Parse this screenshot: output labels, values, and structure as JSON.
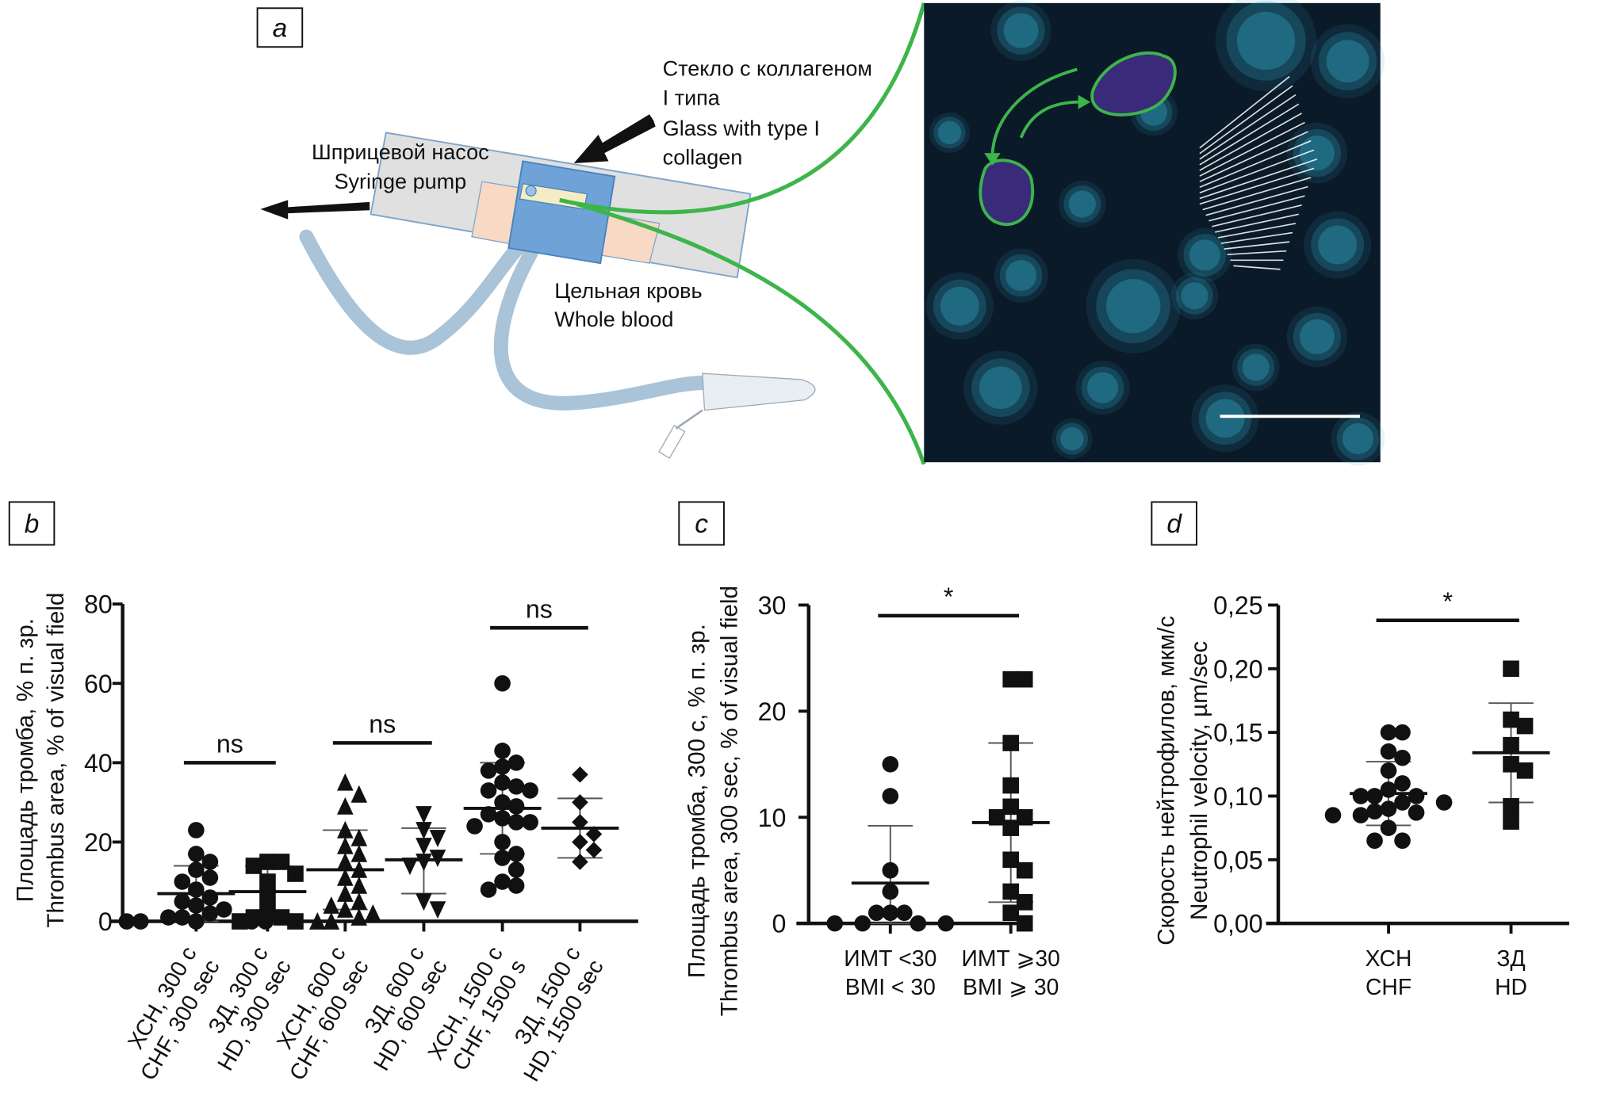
{
  "panels": {
    "a": {
      "label": "a",
      "pump_ru": "Шприцевой насос",
      "pump_en": "Syringe pump",
      "glass_ru_1": "Стекло с коллагеном",
      "glass_ru_2": "I типа",
      "glass_en_1": "Glass with type I",
      "glass_en_2": "collagen",
      "blood_ru": "Цельная кровь",
      "blood_en": "Whole blood"
    },
    "b": {
      "label": "b"
    },
    "c": {
      "label": "c"
    },
    "d": {
      "label": "d"
    }
  },
  "colors": {
    "annotation_green": "#3cb54a",
    "tubing": "#a9c3d8",
    "chamber_blue": "#6fa3d8",
    "micrograph_bg": "#0b1a28",
    "cell_cyan": "#2fa6c4"
  },
  "chart_data": [
    {
      "panel": "b",
      "type": "scatter",
      "ylabel_ru": "Площадь тромба, % п. зр.",
      "ylabel_en": "Thrombus area, % of visual field",
      "ylim": [
        0,
        80
      ],
      "yticks": [
        "0",
        "20",
        "40",
        "60",
        "80"
      ],
      "ytick_values": [
        0,
        20,
        40,
        60,
        80
      ],
      "categories": [
        {
          "ru": "ХСН, 300 с",
          "en": "CHF, 300 sec",
          "marker": "circle",
          "mean": 7,
          "sd_low": 0,
          "sd_high": 14,
          "values": [
            23,
            17,
            15,
            13,
            11,
            10,
            8,
            6,
            5,
            4,
            3,
            2,
            1,
            1,
            0,
            0,
            0,
            0,
            0
          ]
        },
        {
          "ru": "ЗД, 300 с",
          "en": "HD, 300 sec",
          "marker": "square",
          "mean": 7.5,
          "sd_low": 1,
          "sd_high": 14,
          "values": [
            15,
            15,
            14,
            12,
            10,
            6,
            2,
            1,
            1,
            0,
            0
          ]
        },
        {
          "ru": "ХСН, 600 с",
          "en": "CHF, 600 sec",
          "marker": "triangle",
          "mean": 13,
          "sd_low": 3,
          "sd_high": 23,
          "values": [
            35,
            32,
            29,
            23,
            21,
            19,
            17,
            15,
            13,
            11,
            9,
            7,
            5,
            4,
            3,
            2,
            1,
            0,
            0
          ]
        },
        {
          "ru": "ЗД, 600 с",
          "en": "HD, 600 sec",
          "marker": "triangle-down",
          "mean": 15.5,
          "sd_low": 7,
          "sd_high": 23.5,
          "values": [
            27,
            23,
            21,
            19,
            16,
            15,
            14,
            5,
            3
          ]
        },
        {
          "ru": "ХСН, 1500 с",
          "en": "CHF, 1500 s",
          "marker": "circle",
          "mean": 28.5,
          "sd_low": 17,
          "sd_high": 40,
          "values": [
            60,
            43,
            40,
            39,
            38,
            35,
            34,
            33,
            33,
            30,
            29,
            27,
            26,
            25,
            25,
            24,
            20,
            17,
            16,
            13,
            10,
            9,
            8
          ]
        },
        {
          "ru": "ЗД, 1500 с",
          "en": "HD, 1500 sec",
          "marker": "diamond",
          "mean": 23.5,
          "sd_low": 16,
          "sd_high": 31,
          "values": [
            37,
            30,
            25,
            22,
            20,
            18,
            15
          ]
        }
      ],
      "significance": [
        {
          "from": 0,
          "to": 1,
          "y": 40,
          "label": "ns"
        },
        {
          "from": 2,
          "to": 3,
          "y": 45,
          "label": "ns"
        },
        {
          "from": 4,
          "to": 5,
          "y": 74,
          "label": "ns"
        }
      ]
    },
    {
      "panel": "c",
      "type": "scatter",
      "ylabel_ru": "Площадь тромба, 300 с, % п. зр.",
      "ylabel_en": "Thrombus area, 300 sec, % of visual field",
      "ylim": [
        0,
        30
      ],
      "yticks": [
        "0",
        "10",
        "20",
        "30"
      ],
      "ytick_values": [
        0,
        10,
        20,
        30
      ],
      "categories": [
        {
          "ru": "ИМТ <30",
          "en": "BMI < 30",
          "marker": "circle",
          "mean": 3.8,
          "sd_low": 0,
          "sd_high": 9.2,
          "values": [
            15,
            12,
            5,
            3,
            1,
            1,
            1,
            0,
            0,
            0,
            0
          ]
        },
        {
          "ru": "ИМТ ⩾30",
          "en": "BMI ⩾ 30",
          "marker": "square",
          "mean": 9.5,
          "sd_low": 2,
          "sd_high": 17,
          "values": [
            23,
            23,
            17,
            13,
            11,
            10,
            10,
            9,
            6,
            5,
            3,
            2,
            1,
            0
          ]
        }
      ],
      "significance": [
        {
          "from": 0,
          "to": 1,
          "y": 29,
          "label": "*"
        }
      ]
    },
    {
      "panel": "d",
      "type": "scatter",
      "ylabel_ru": "Скорость нейтрофилов, мкм/с",
      "ylabel_en": "Neutrophil velocity, µm/sec",
      "ylim": [
        0,
        0.25
      ],
      "yticks": [
        "0,00",
        "0,05",
        "0,10",
        "0,15",
        "0,20",
        "0,25"
      ],
      "ytick_values": [
        0,
        0.05,
        0.1,
        0.15,
        0.2,
        0.25
      ],
      "categories": [
        {
          "ru": "ХСН",
          "en": "CHF",
          "marker": "circle",
          "mean": 0.102,
          "sd_low": 0.077,
          "sd_high": 0.127,
          "values": [
            0.15,
            0.15,
            0.135,
            0.13,
            0.12,
            0.11,
            0.105,
            0.1,
            0.1,
            0.1,
            0.095,
            0.095,
            0.09,
            0.088,
            0.087,
            0.085,
            0.085,
            0.075,
            0.065,
            0.065
          ]
        },
        {
          "ru": "ЗД",
          "en": "HD",
          "marker": "square",
          "mean": 0.134,
          "sd_low": 0.095,
          "sd_high": 0.173,
          "values": [
            0.2,
            0.16,
            0.155,
            0.14,
            0.125,
            0.12,
            0.092,
            0.08
          ]
        }
      ],
      "significance": [
        {
          "from": 0,
          "to": 1,
          "y": 0.238,
          "label": "*"
        }
      ]
    }
  ]
}
